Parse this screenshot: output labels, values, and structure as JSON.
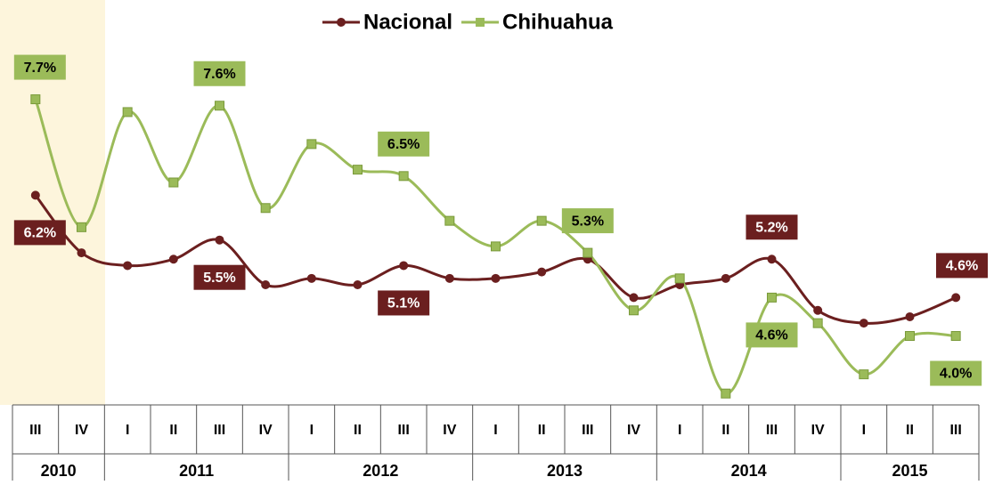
{
  "chart_data": {
    "type": "line",
    "category_groups": [
      {
        "label": "2010",
        "categories": [
          "III",
          "IV"
        ]
      },
      {
        "label": "2011",
        "categories": [
          "I",
          "II",
          "III",
          "IV"
        ]
      },
      {
        "label": "2012",
        "categories": [
          "I",
          "II",
          "III",
          "IV"
        ]
      },
      {
        "label": "2013",
        "categories": [
          "I",
          "II",
          "III",
          "IV"
        ]
      },
      {
        "label": "2014",
        "categories": [
          "I",
          "II",
          "III",
          "IV"
        ]
      },
      {
        "label": "2015",
        "categories": [
          "I",
          "II",
          "III"
        ]
      }
    ],
    "series": [
      {
        "name": "Nacional",
        "color": "#6b1f1f",
        "values": [
          6.2,
          5.3,
          5.1,
          5.2,
          5.5,
          4.8,
          4.9,
          4.8,
          5.1,
          4.9,
          4.9,
          5.0,
          5.2,
          4.6,
          4.8,
          4.9,
          5.2,
          4.4,
          4.2,
          4.3,
          4.6
        ],
        "value_labels": [
          "6.2%",
          null,
          null,
          null,
          "5.5%",
          null,
          null,
          null,
          "5.1%",
          null,
          null,
          null,
          null,
          null,
          null,
          null,
          "5.2%",
          null,
          null,
          null,
          "4.6%"
        ]
      },
      {
        "name": "Chihuahua",
        "color": "#9bbb59",
        "values": [
          7.7,
          5.7,
          7.5,
          6.4,
          7.6,
          6.0,
          7.0,
          6.6,
          6.5,
          5.8,
          5.4,
          5.8,
          5.3,
          4.4,
          4.9,
          3.1,
          4.6,
          4.2,
          3.4,
          4.0,
          4.0
        ],
        "value_labels": [
          "7.7%",
          null,
          null,
          null,
          "7.6%",
          null,
          null,
          null,
          "6.5%",
          null,
          null,
          null,
          "5.3%",
          null,
          null,
          null,
          "4.6%",
          null,
          null,
          null,
          "4.0%"
        ]
      }
    ],
    "ylim": [
      2.95,
      8.0
    ],
    "legend": "top"
  }
}
